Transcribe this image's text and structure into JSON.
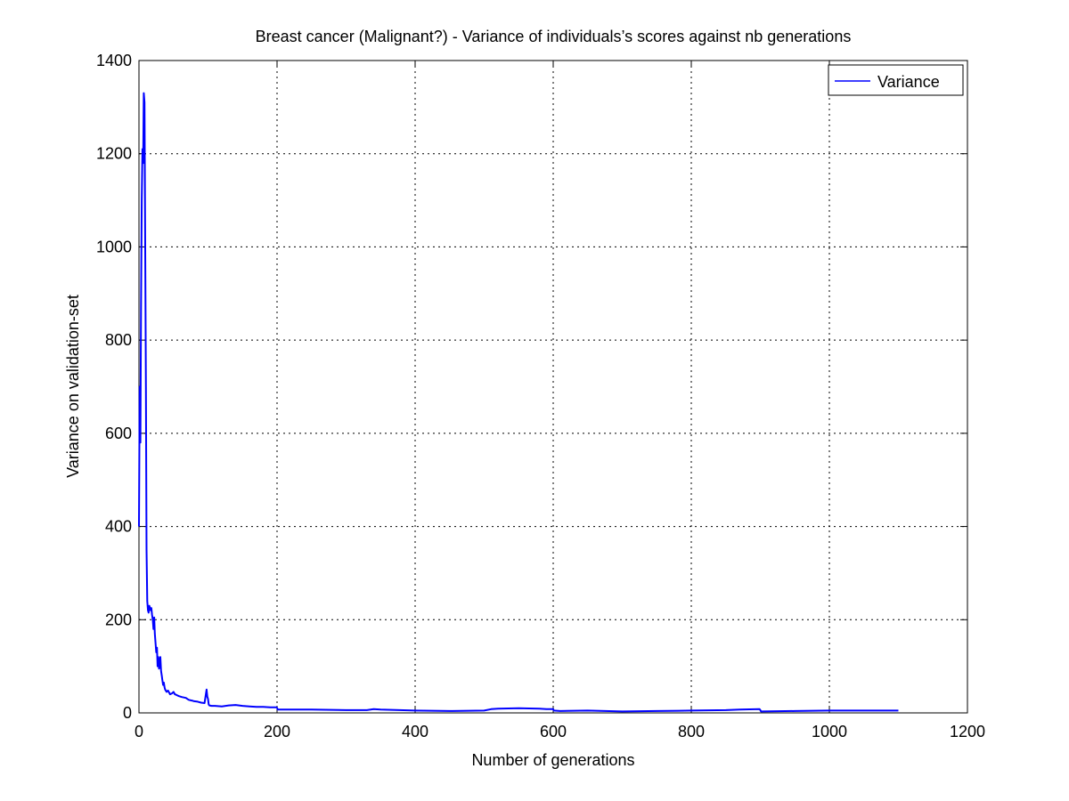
{
  "chart_data": {
    "type": "line",
    "title": "Breast cancer (Malignant?) - Variance of individuals’s scores against nb generations",
    "xlabel": "Number of generations",
    "ylabel": "Variance on validation-set",
    "xlim": [
      0,
      1200
    ],
    "ylim": [
      0,
      1400
    ],
    "xticks": [
      0,
      200,
      400,
      600,
      800,
      1000,
      1200
    ],
    "yticks": [
      0,
      200,
      400,
      600,
      800,
      1000,
      1200,
      1400
    ],
    "grid": true,
    "grid_style": "dotted",
    "legend_position": "top-right",
    "series": [
      {
        "name": "Variance",
        "color": "#0000ff",
        "x": [
          0,
          1,
          2,
          3,
          4,
          5,
          6,
          7,
          8,
          9,
          10,
          11,
          12,
          13,
          14,
          15,
          16,
          17,
          18,
          19,
          20,
          21,
          22,
          23,
          24,
          25,
          26,
          27,
          28,
          29,
          30,
          31,
          32,
          33,
          34,
          35,
          36,
          37,
          38,
          40,
          42,
          45,
          48,
          50,
          52,
          55,
          58,
          60,
          62,
          65,
          68,
          70,
          72,
          75,
          78,
          80,
          85,
          90,
          95,
          98,
          99,
          100,
          101,
          102,
          105,
          110,
          120,
          130,
          140,
          150,
          160,
          170,
          180,
          190,
          199,
          200,
          201,
          250,
          300,
          330,
          340,
          350,
          400,
          450,
          500,
          510,
          520,
          550,
          580,
          590,
          600,
          601,
          610,
          650,
          700,
          750,
          800,
          850,
          870,
          899,
          900,
          901,
          950,
          1000,
          1050,
          1100
        ],
        "values": [
          400,
          700,
          580,
          870,
          1100,
          1210,
          1180,
          1330,
          1310,
          1000,
          700,
          350,
          240,
          220,
          215,
          230,
          225,
          220,
          225,
          210,
          200,
          180,
          205,
          170,
          150,
          130,
          140,
          100,
          120,
          95,
          110,
          120,
          90,
          80,
          70,
          60,
          65,
          55,
          50,
          45,
          48,
          40,
          42,
          45,
          40,
          38,
          36,
          35,
          34,
          33,
          32,
          30,
          28,
          27,
          26,
          25,
          24,
          22,
          21,
          50,
          35,
          30,
          18,
          16,
          15,
          15,
          14,
          16,
          17,
          15,
          14,
          13,
          13,
          12,
          12,
          11,
          7,
          7,
          6,
          6,
          8,
          7,
          5,
          4,
          5,
          8,
          9,
          10,
          9,
          8,
          8,
          5,
          4,
          5,
          3,
          4,
          5,
          6,
          7,
          8,
          6,
          3,
          4,
          5,
          5,
          5
        ]
      }
    ]
  }
}
